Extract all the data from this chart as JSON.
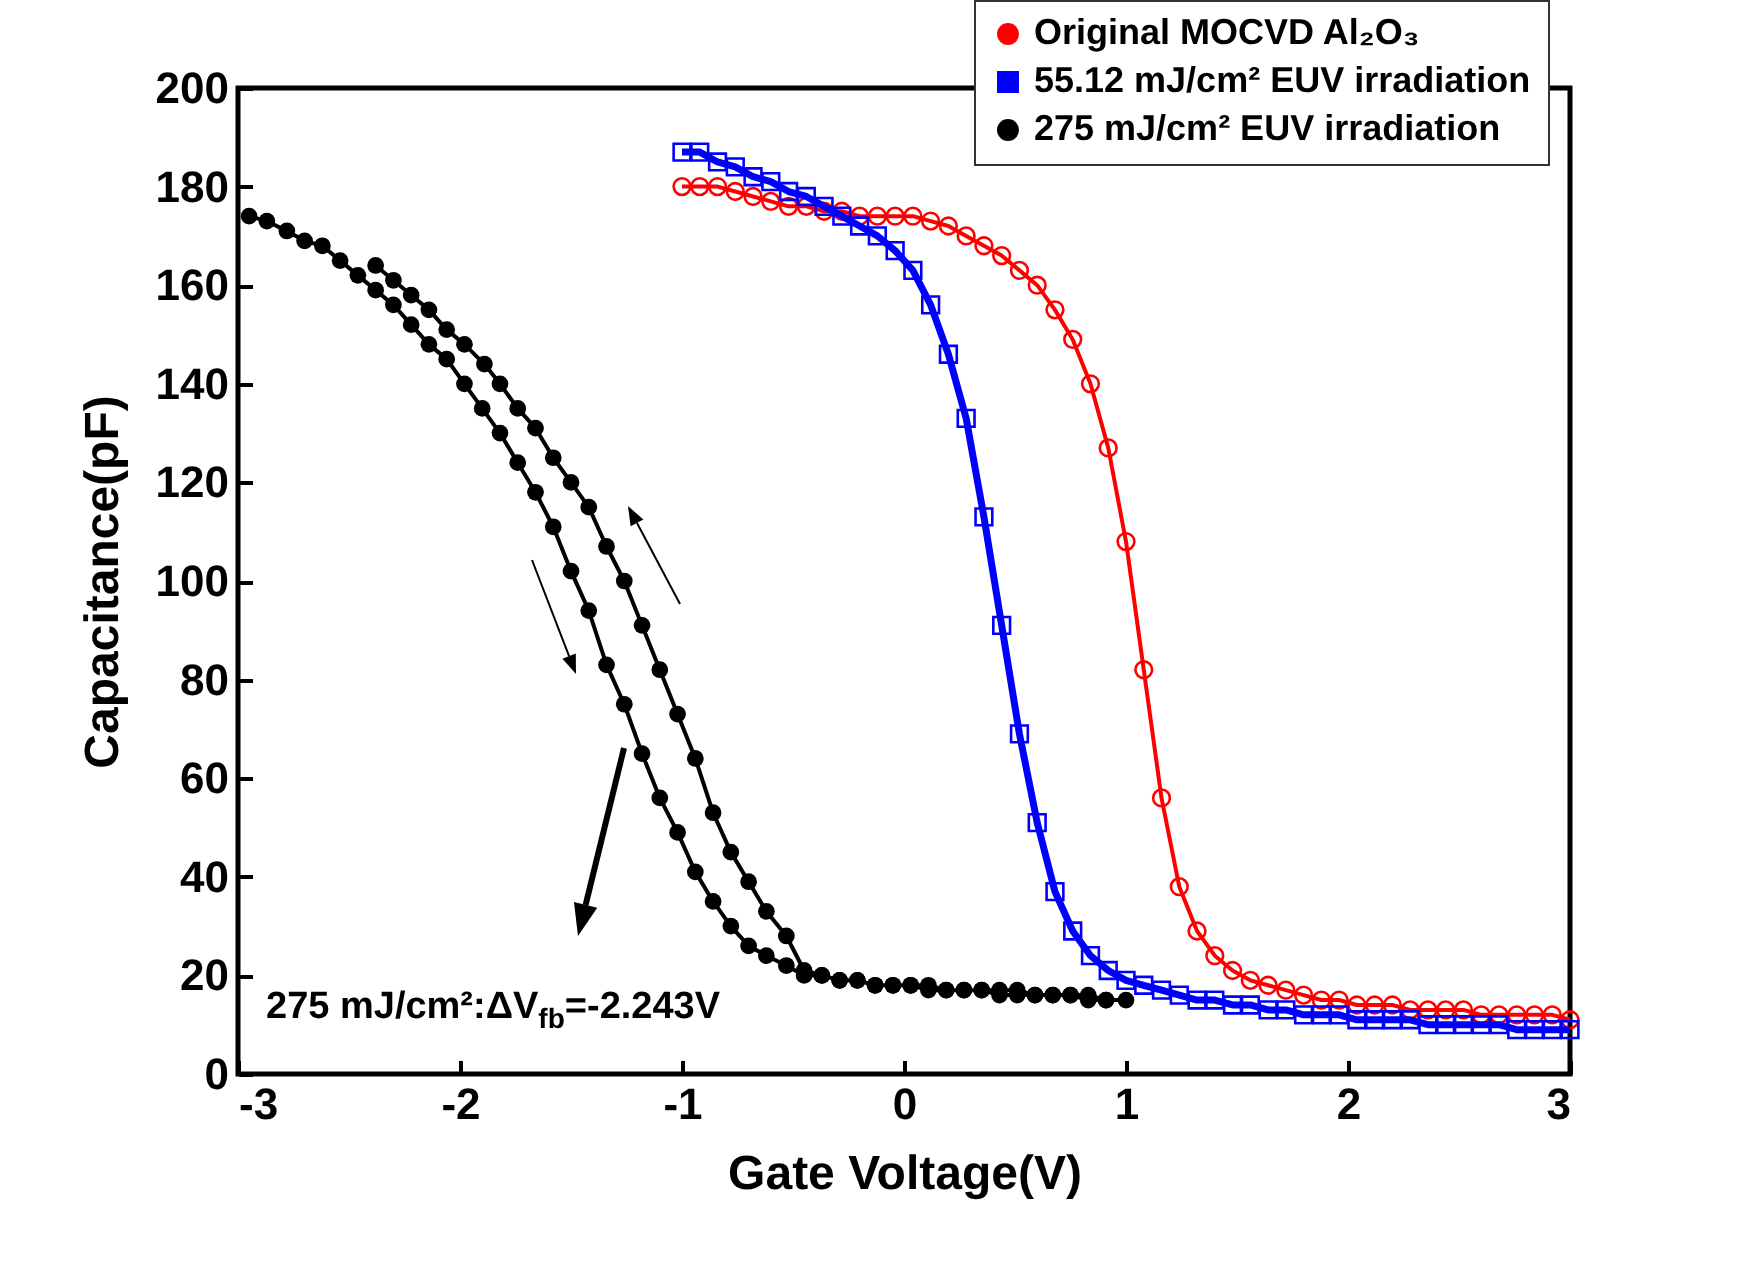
{
  "chart_data": {
    "type": "line",
    "xlabel": "Gate Voltage(V)",
    "ylabel": "Capacitance(pF)",
    "xlim": [
      -3,
      3
    ],
    "xticks": [
      -3,
      -2,
      -1,
      0,
      1,
      2,
      3
    ],
    "ylim": [
      0,
      200
    ],
    "yticks": [
      0,
      20,
      40,
      60,
      80,
      100,
      120,
      140,
      160,
      180,
      200
    ],
    "grid": false,
    "legend": "top right",
    "line_style": "solid",
    "annotations": [
      "275 mJ/cm²:ΔV$_{fb}$=-2.243V"
    ],
    "series": [
      {
        "name": "Original MOCVD Al₂O₃",
        "color": "#ff0000",
        "marker": "circle",
        "x": [
          -1,
          -0.92,
          -0.84,
          -0.76,
          -0.68,
          -0.6,
          -0.52,
          -0.44,
          -0.36,
          -0.28,
          -0.2,
          -0.12,
          -0.04,
          0.04,
          0.12,
          0.2,
          0.28,
          0.36,
          0.44,
          0.52,
          0.6,
          0.68,
          0.76,
          0.84,
          0.92,
          1,
          1.08,
          1.16,
          1.24,
          1.32,
          1.4,
          1.48,
          1.56,
          1.64,
          1.72,
          1.8,
          1.88,
          1.96,
          2.04,
          2.12,
          2.2,
          2.28,
          2.36,
          2.44,
          2.52,
          2.6,
          2.68,
          2.76,
          2.84,
          2.92,
          3
        ],
        "values": [
          180,
          180,
          180,
          179,
          178,
          177,
          176,
          176,
          175,
          175,
          174,
          174,
          174,
          174,
          173,
          172,
          170,
          168,
          166,
          163,
          160,
          155,
          149,
          140,
          127,
          108,
          82,
          56,
          38,
          29,
          24,
          21,
          19,
          18,
          17,
          16,
          15,
          15,
          14,
          14,
          14,
          13,
          13,
          13,
          13,
          12,
          12,
          12,
          12,
          12,
          11
        ]
      },
      {
        "name": "55.12 mJ/cm² EUV irradiation",
        "color": "#0000ff",
        "marker": "square",
        "x": [
          -1,
          -0.92,
          -0.84,
          -0.76,
          -0.68,
          -0.6,
          -0.52,
          -0.44,
          -0.36,
          -0.28,
          -0.2,
          -0.12,
          -0.04,
          0.04,
          0.12,
          0.2,
          0.28,
          0.36,
          0.44,
          0.52,
          0.6,
          0.68,
          0.76,
          0.84,
          0.92,
          1,
          1.08,
          1.16,
          1.24,
          1.32,
          1.4,
          1.48,
          1.56,
          1.64,
          1.72,
          1.8,
          1.88,
          1.96,
          2.04,
          2.12,
          2.2,
          2.28,
          2.36,
          2.44,
          2.52,
          2.6,
          2.68,
          2.76,
          2.84,
          2.92,
          3
        ],
        "values": [
          187,
          187,
          185,
          184,
          182,
          181,
          179,
          178,
          176,
          174,
          172,
          170,
          167,
          163,
          156,
          146,
          133,
          113,
          91,
          69,
          51,
          37,
          29,
          24,
          21,
          19,
          18,
          17,
          16,
          15,
          15,
          14,
          14,
          13,
          13,
          12,
          12,
          12,
          11,
          11,
          11,
          11,
          10,
          10,
          10,
          10,
          10,
          9,
          9,
          9,
          9
        ]
      },
      {
        "name": "275 mJ/cm² EUV irradiation",
        "color": "#000000",
        "marker": "circle",
        "x": [
          -2.95,
          -2.87,
          -2.78,
          -2.7,
          -2.62,
          -2.54,
          -2.46,
          -2.38,
          -2.3,
          -2.22,
          -2.14,
          -2.06,
          -1.98,
          -1.9,
          -1.82,
          -1.74,
          -1.66,
          -1.58,
          -1.5,
          -1.42,
          -1.34,
          -1.26,
          -1.18,
          -1.1,
          -1.02,
          -0.94,
          -0.86,
          -0.78,
          -0.7,
          -0.62,
          -0.53,
          -0.45,
          -0.37,
          -0.29,
          -0.21,
          -0.13,
          -0.05,
          0.03,
          0.11,
          0.19,
          0.27,
          0.35,
          0.43,
          0.51,
          0.59,
          0.67,
          0.75,
          0.83,
          0.91,
          1,
          0.91,
          0.83,
          0.75,
          0.67,
          0.59,
          0.51,
          0.43,
          0.35,
          0.27,
          0.19,
          0.11,
          0.03,
          -0.05,
          -0.13,
          -0.21,
          -0.29,
          -0.37,
          -0.45,
          -0.53,
          -0.62,
          -0.7,
          -0.78,
          -0.86,
          -0.94,
          -1.02,
          -1.1,
          -1.18,
          -1.26,
          -1.34,
          -1.42,
          -1.5,
          -1.58,
          -1.66,
          -1.74,
          -1.82,
          -1.89,
          -1.98,
          -2.06,
          -2.14,
          -2.22,
          -2.3,
          -2.38
        ],
        "values": [
          174,
          173,
          171,
          169,
          168,
          165,
          162,
          159,
          156,
          152,
          148,
          145,
          140,
          135,
          130,
          124,
          118,
          111,
          102,
          94,
          83,
          75,
          65,
          56,
          49,
          41,
          35,
          30,
          26,
          24,
          22,
          20,
          20,
          19,
          19,
          18,
          18,
          18,
          17,
          17,
          17,
          17,
          16,
          16,
          16,
          16,
          16,
          15,
          15,
          15,
          15,
          16,
          16,
          16,
          16,
          17,
          17,
          17,
          17,
          17,
          18,
          18,
          18,
          18,
          19,
          19,
          20,
          21,
          28,
          33,
          39,
          45,
          53,
          64,
          73,
          82,
          91,
          100,
          107,
          115,
          120,
          125,
          131,
          135,
          140,
          144,
          148,
          151,
          155,
          158,
          161,
          164
        ]
      }
    ]
  }
}
